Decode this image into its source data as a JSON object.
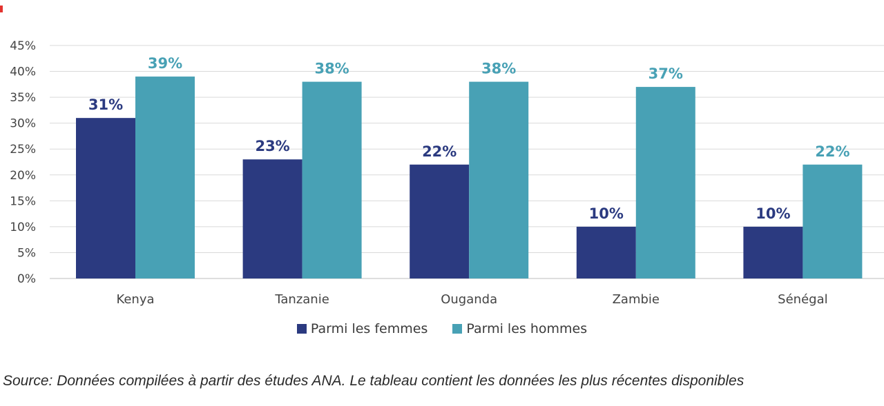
{
  "chart_data": {
    "type": "bar",
    "categories": [
      "Kenya",
      "Tanzanie",
      "Ouganda",
      "Zambie",
      "Sénégal"
    ],
    "series": [
      {
        "name": "Parmi les femmes",
        "values": [
          31,
          23,
          22,
          10,
          10
        ],
        "labels": [
          "31%",
          "23%",
          "22%",
          "10%",
          "10%"
        ],
        "color": "#2b3a80"
      },
      {
        "name": "Parmi les hommes",
        "values": [
          39,
          38,
          38,
          37,
          22
        ],
        "labels": [
          "39%",
          "38%",
          "38%",
          "37%",
          "22%"
        ],
        "color": "#48a1b5"
      }
    ],
    "ylim": [
      0,
      45
    ],
    "yticks": [
      "0%",
      "5%",
      "10%",
      "15%",
      "20%",
      "25%",
      "30%",
      "35%",
      "40%",
      "45%"
    ],
    "grid": true,
    "legend_position": "bottom"
  },
  "source_text": "Source: Données compilées à partir des études ANA. Le tableau contient les données les plus récentes disponibles"
}
